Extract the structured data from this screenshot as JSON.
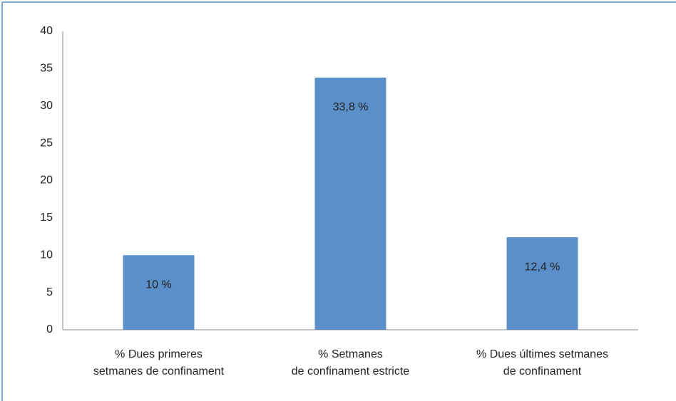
{
  "chart_data": {
    "type": "bar",
    "categories": [
      [
        "% Dues primeres",
        "setmanes de confinament"
      ],
      [
        "% Setmanes",
        "de confinament estricte"
      ],
      [
        "% Dues últimes setmanes",
        "de confinament"
      ]
    ],
    "values": [
      10,
      33.8,
      12.4
    ],
    "value_labels": [
      "10 %",
      "33,8 %",
      "12,4 %"
    ],
    "color": "#5b8fc9",
    "ylim": [
      0,
      40
    ],
    "yticks": [
      0,
      5,
      10,
      15,
      20,
      25,
      30,
      35,
      40
    ],
    "grid": false
  }
}
